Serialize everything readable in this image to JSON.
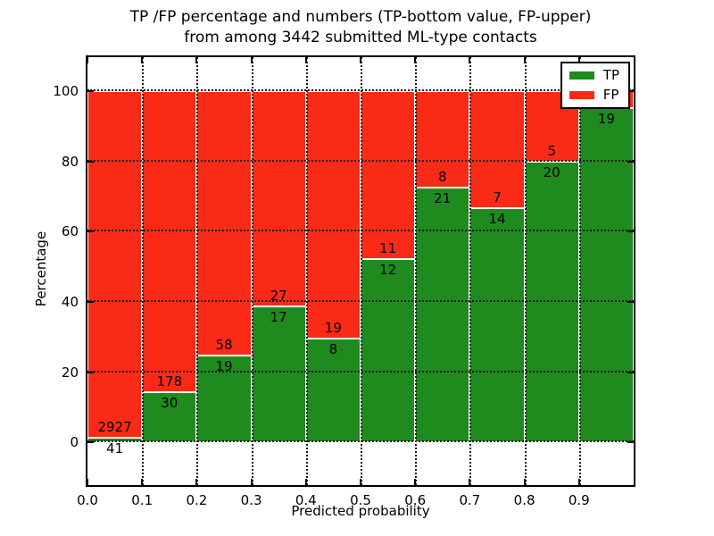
{
  "chart_data": {
    "type": "bar",
    "subtype": "stacked-percentage-histogram",
    "title_line1": "TP /FP percentage and numbers (TP-bottom value, FP-upper)",
    "title_line2": "from among 3442 submitted ML-type contacts",
    "xlabel": "Predicted probability",
    "ylabel": "Percentage",
    "total_contacts": 3442,
    "xlim": [
      0.0,
      1.0
    ],
    "ylim": [
      -12.1,
      109.6
    ],
    "x_ticks": [
      "0.0",
      "0.1",
      "0.2",
      "0.3",
      "0.4",
      "0.5",
      "0.6",
      "0.7",
      "0.8",
      "0.9"
    ],
    "y_ticks": [
      0,
      20,
      40,
      60,
      80,
      100
    ],
    "grid": true,
    "bin_width": 0.1,
    "bars": [
      {
        "x0": 0.0,
        "x1": 0.1,
        "tp": 41,
        "fp": 2927,
        "fp_label_visible": true
      },
      {
        "x0": 0.1,
        "x1": 0.2,
        "tp": 30,
        "fp": 178,
        "fp_label_visible": true
      },
      {
        "x0": 0.2,
        "x1": 0.3,
        "tp": 19,
        "fp": 58,
        "fp_label_visible": true
      },
      {
        "x0": 0.3,
        "x1": 0.4,
        "tp": 17,
        "fp": 27,
        "fp_label_visible": true
      },
      {
        "x0": 0.4,
        "x1": 0.5,
        "tp": 8,
        "fp": 19,
        "fp_label_visible": true
      },
      {
        "x0": 0.5,
        "x1": 0.6,
        "tp": 12,
        "fp": 11,
        "fp_label_visible": true
      },
      {
        "x0": 0.6,
        "x1": 0.7,
        "tp": 21,
        "fp": 8,
        "fp_label_visible": true
      },
      {
        "x0": 0.7,
        "x1": 0.8,
        "tp": 14,
        "fp": 7,
        "fp_label_visible": true
      },
      {
        "x0": 0.8,
        "x1": 0.9,
        "tp": 20,
        "fp": 5,
        "fp_label_visible": true
      },
      {
        "x0": 0.9,
        "x1": 1.0,
        "tp": 19,
        "fp": 1,
        "fp_label_visible": false
      }
    ],
    "legend": {
      "position": "upper-right",
      "entries": [
        {
          "label": "TP",
          "color": "#1f8b1f"
        },
        {
          "label": "FP",
          "color": "#fa2b16"
        }
      ]
    },
    "colors": {
      "tp_green": "#1f8b1f",
      "fp_red": "#fa2b16",
      "grid": "#1a1a1a",
      "bar_edge": "#ffffff",
      "text": "#000000",
      "background": "#ffffff"
    }
  }
}
